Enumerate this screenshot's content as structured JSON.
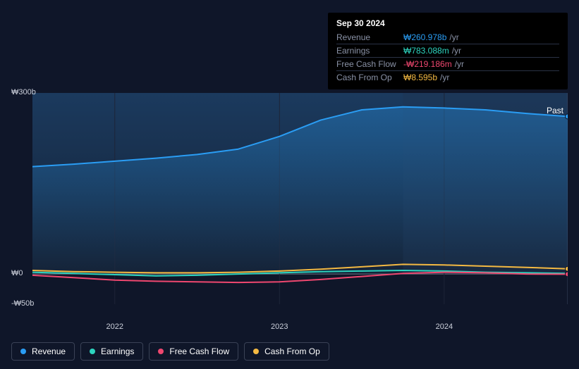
{
  "tooltip": {
    "date": "Sep 30 2024",
    "rows": [
      {
        "label": "Revenue",
        "value": "₩260.978b",
        "suffix": "/yr",
        "color": "#2a9df4"
      },
      {
        "label": "Earnings",
        "value": "₩783.088m",
        "suffix": "/yr",
        "color": "#2dd4bf"
      },
      {
        "label": "Free Cash Flow",
        "value": "-₩219.186m",
        "suffix": "/yr",
        "color": "#ef476f"
      },
      {
        "label": "Cash From Op",
        "value": "₩8.595b",
        "suffix": "/yr",
        "color": "#f4b942"
      }
    ]
  },
  "chart": {
    "type": "area",
    "background_color": "#0f1629",
    "plot_gradient_top": "#1b3a5e",
    "plot_gradient_bottom": "#142033",
    "grid_color": "#1e2538",
    "axis_line_color": "#6b7280",
    "past_label": "Past",
    "ylim": [
      -50,
      300
    ],
    "y_ticks": [
      {
        "v": 300,
        "label": "₩300b"
      },
      {
        "v": 0,
        "label": "₩0"
      },
      {
        "v": -50,
        "label": "-₩50b"
      }
    ],
    "x_years": [
      "2022",
      "2023",
      "2024"
    ],
    "x_domain": [
      2021.5,
      2024.75
    ],
    "marker_x": 2024.75,
    "series": [
      {
        "name": "Revenue",
        "color": "#2a9df4",
        "area": true,
        "points": [
          [
            2021.5,
            178
          ],
          [
            2021.75,
            182
          ],
          [
            2022.0,
            187
          ],
          [
            2022.25,
            192
          ],
          [
            2022.5,
            198
          ],
          [
            2022.75,
            207
          ],
          [
            2023.0,
            228
          ],
          [
            2023.25,
            255
          ],
          [
            2023.5,
            272
          ],
          [
            2023.75,
            277
          ],
          [
            2024.0,
            275
          ],
          [
            2024.25,
            272
          ],
          [
            2024.5,
            266
          ],
          [
            2024.75,
            261
          ]
        ]
      },
      {
        "name": "Earnings",
        "color": "#2dd4bf",
        "area": false,
        "points": [
          [
            2021.5,
            3
          ],
          [
            2021.75,
            1
          ],
          [
            2022.0,
            -1
          ],
          [
            2022.25,
            -3
          ],
          [
            2022.5,
            -2
          ],
          [
            2022.75,
            0
          ],
          [
            2023.0,
            2
          ],
          [
            2023.25,
            4
          ],
          [
            2023.5,
            5
          ],
          [
            2023.75,
            6
          ],
          [
            2024.0,
            5
          ],
          [
            2024.25,
            3
          ],
          [
            2024.5,
            2
          ],
          [
            2024.75,
            1
          ]
        ]
      },
      {
        "name": "Free Cash Flow",
        "color": "#ef476f",
        "area": false,
        "points": [
          [
            2021.5,
            -2
          ],
          [
            2021.75,
            -6
          ],
          [
            2022.0,
            -10
          ],
          [
            2022.25,
            -12
          ],
          [
            2022.5,
            -13
          ],
          [
            2022.75,
            -14
          ],
          [
            2023.0,
            -13
          ],
          [
            2023.25,
            -9
          ],
          [
            2023.5,
            -4
          ],
          [
            2023.75,
            1
          ],
          [
            2024.0,
            3
          ],
          [
            2024.25,
            2
          ],
          [
            2024.5,
            0
          ],
          [
            2024.75,
            -0.2
          ]
        ]
      },
      {
        "name": "Cash From Op",
        "color": "#f4b942",
        "area": false,
        "points": [
          [
            2021.5,
            6
          ],
          [
            2021.75,
            4
          ],
          [
            2022.0,
            3
          ],
          [
            2022.25,
            2
          ],
          [
            2022.5,
            2
          ],
          [
            2022.75,
            3
          ],
          [
            2023.0,
            5
          ],
          [
            2023.25,
            8
          ],
          [
            2023.5,
            12
          ],
          [
            2023.75,
            16
          ],
          [
            2024.0,
            15
          ],
          [
            2024.25,
            13
          ],
          [
            2024.5,
            11
          ],
          [
            2024.75,
            8.6
          ]
        ]
      }
    ]
  },
  "legend": [
    {
      "label": "Revenue",
      "color": "#2a9df4"
    },
    {
      "label": "Earnings",
      "color": "#2dd4bf"
    },
    {
      "label": "Free Cash Flow",
      "color": "#ef476f"
    },
    {
      "label": "Cash From Op",
      "color": "#f4b942"
    }
  ]
}
